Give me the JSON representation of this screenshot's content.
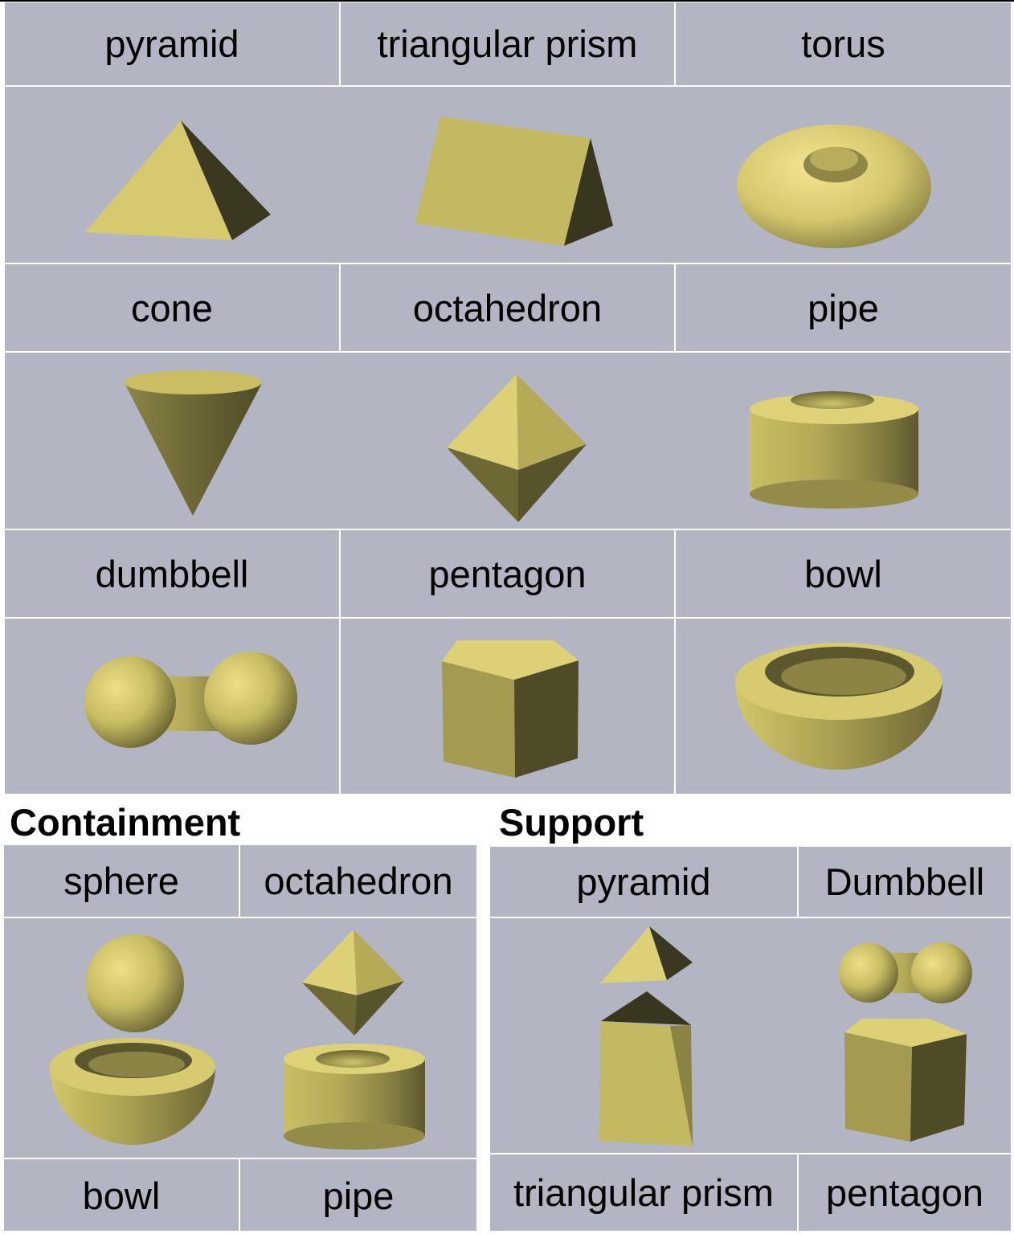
{
  "grid": {
    "row1_labels": [
      "pyramid",
      "triangular prism",
      "torus"
    ],
    "row2_labels": [
      "cone",
      "octahedron",
      "pipe"
    ],
    "row3_labels": [
      "dumbbell",
      "pentagon",
      "bowl"
    ]
  },
  "containment": {
    "title": "Containment",
    "top_labels": [
      "sphere",
      "octahedron"
    ],
    "bottom_labels": [
      "bowl",
      "pipe"
    ]
  },
  "support": {
    "title": "Support",
    "top_labels": [
      "pyramid",
      "Dumbbell"
    ],
    "bottom_labels": [
      "triangular prism",
      "pentagon"
    ]
  },
  "colors": {
    "panel_bg": "#b4b5c2",
    "shape_light": "#e0d27a",
    "shape_mid": "#bfb55e",
    "shape_dark": "#5b5630"
  }
}
